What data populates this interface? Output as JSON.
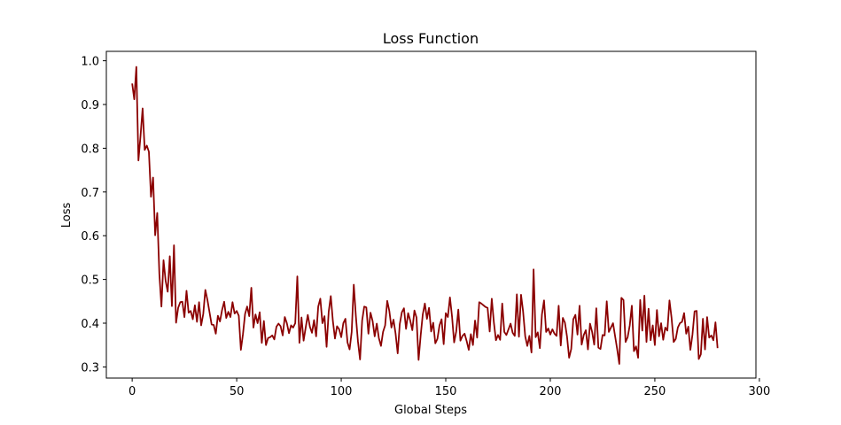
{
  "chart_data": {
    "type": "line",
    "title": "Loss Function",
    "xlabel": "Global Steps",
    "ylabel": "Loss",
    "xlim": [
      -12.35,
      298.35
    ],
    "ylim": [
      0.2745,
      1.0215
    ],
    "xticks": [
      0,
      50,
      100,
      150,
      200,
      250,
      300
    ],
    "yticks": [
      0.3,
      0.4,
      0.5,
      0.6,
      0.7,
      0.8,
      0.9,
      1.0
    ],
    "xtick_labels": [
      "0",
      "50",
      "100",
      "150",
      "200",
      "250",
      "300"
    ],
    "ytick_labels": [
      "0.3",
      "0.4",
      "0.5",
      "0.6",
      "0.7",
      "0.8",
      "0.9",
      "1.0"
    ],
    "grid": false,
    "line_color": "#8b0000",
    "series": [
      {
        "x_start": 0,
        "x_step": 1,
        "values": [
          0.948,
          0.912,
          0.986,
          0.772,
          0.828,
          0.891,
          0.796,
          0.806,
          0.792,
          0.689,
          0.733,
          0.601,
          0.652,
          0.513,
          0.438,
          0.544,
          0.497,
          0.472,
          0.553,
          0.439,
          0.578,
          0.401,
          0.435,
          0.448,
          0.449,
          0.414,
          0.474,
          0.424,
          0.428,
          0.409,
          0.441,
          0.403,
          0.448,
          0.395,
          0.421,
          0.476,
          0.453,
          0.425,
          0.397,
          0.396,
          0.376,
          0.417,
          0.404,
          0.43,
          0.449,
          0.412,
          0.426,
          0.414,
          0.448,
          0.422,
          0.428,
          0.417,
          0.339,
          0.375,
          0.421,
          0.438,
          0.416,
          0.481,
          0.39,
          0.42,
          0.4,
          0.425,
          0.355,
          0.405,
          0.35,
          0.366,
          0.368,
          0.372,
          0.363,
          0.392,
          0.399,
          0.393,
          0.372,
          0.414,
          0.4,
          0.377,
          0.395,
          0.39,
          0.4,
          0.507,
          0.355,
          0.413,
          0.36,
          0.39,
          0.419,
          0.392,
          0.378,
          0.407,
          0.37,
          0.438,
          0.456,
          0.4,
          0.416,
          0.346,
          0.426,
          0.462,
          0.405,
          0.365,
          0.393,
          0.386,
          0.368,
          0.4,
          0.41,
          0.356,
          0.34,
          0.38,
          0.488,
          0.416,
          0.358,
          0.317,
          0.406,
          0.438,
          0.436,
          0.376,
          0.424,
          0.405,
          0.37,
          0.399,
          0.366,
          0.348,
          0.38,
          0.395,
          0.451,
          0.428,
          0.39,
          0.408,
          0.376,
          0.331,
          0.398,
          0.425,
          0.434,
          0.387,
          0.423,
          0.406,
          0.384,
          0.429,
          0.413,
          0.316,
          0.372,
          0.42,
          0.445,
          0.41,
          0.435,
          0.381,
          0.401,
          0.354,
          0.364,
          0.395,
          0.409,
          0.352,
          0.423,
          0.414,
          0.459,
          0.415,
          0.356,
          0.381,
          0.431,
          0.36,
          0.371,
          0.376,
          0.359,
          0.339,
          0.375,
          0.35,
          0.406,
          0.367,
          0.448,
          0.445,
          0.441,
          0.437,
          0.435,
          0.381,
          0.456,
          0.402,
          0.361,
          0.373,
          0.362,
          0.445,
          0.38,
          0.373,
          0.386,
          0.399,
          0.378,
          0.371,
          0.466,
          0.369,
          0.465,
          0.426,
          0.37,
          0.348,
          0.371,
          0.333,
          0.523,
          0.368,
          0.379,
          0.343,
          0.42,
          0.452,
          0.38,
          0.388,
          0.374,
          0.386,
          0.376,
          0.371,
          0.44,
          0.349,
          0.412,
          0.401,
          0.369,
          0.321,
          0.341,
          0.409,
          0.419,
          0.374,
          0.44,
          0.351,
          0.373,
          0.384,
          0.34,
          0.399,
          0.38,
          0.351,
          0.434,
          0.344,
          0.341,
          0.373,
          0.372,
          0.45,
          0.38,
          0.39,
          0.4,
          0.37,
          0.34,
          0.307,
          0.458,
          0.453,
          0.357,
          0.368,
          0.395,
          0.44,
          0.336,
          0.347,
          0.321,
          0.453,
          0.383,
          0.463,
          0.357,
          0.433,
          0.361,
          0.395,
          0.35,
          0.43,
          0.37,
          0.4,
          0.362,
          0.39,
          0.383,
          0.452,
          0.412,
          0.357,
          0.364,
          0.39,
          0.4,
          0.403,
          0.423,
          0.376,
          0.392,
          0.339,
          0.374,
          0.427,
          0.428,
          0.318,
          0.329,
          0.41,
          0.34,
          0.414,
          0.367,
          0.372,
          0.361,
          0.402,
          0.343
        ]
      }
    ]
  }
}
